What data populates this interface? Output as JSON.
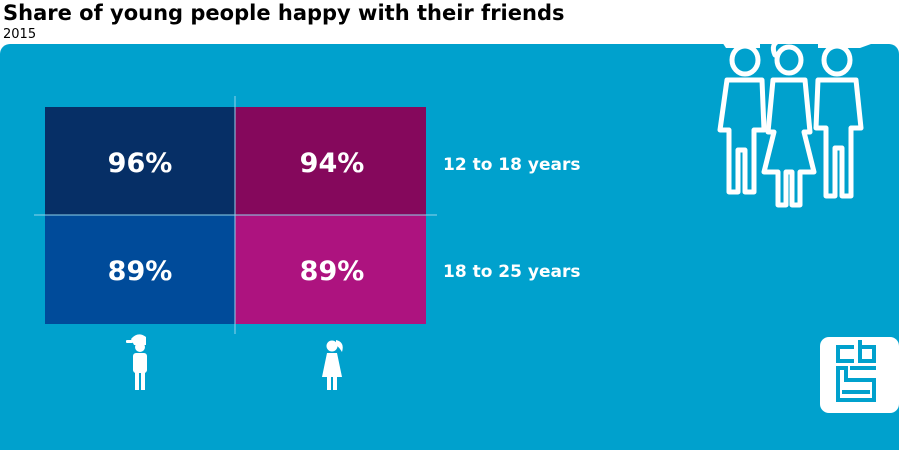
{
  "title": "Share of young people happy with their friends",
  "subtitle": "2015",
  "colors": {
    "background_panel": "#00a1cd",
    "boys_12_18": "#062f66",
    "girls_12_18": "#85085c",
    "boys_18_25": "#004b9a",
    "girls_18_25": "#ad137f",
    "icon": "#ffffff"
  },
  "icons": {
    "group": "group-of-young-people-icon",
    "boy": "boy-icon",
    "girl": "girl-icon",
    "logo": "cbs-logo-icon"
  },
  "chart_data": {
    "type": "table",
    "title": "Share of young people happy with their friends",
    "subtitle": "2015",
    "unit": "%",
    "rows": [
      "12 to 18 years",
      "18 to 25 years"
    ],
    "columns": [
      "boy-icon",
      "girl-icon"
    ],
    "values": [
      [
        96,
        94
      ],
      [
        89,
        89
      ]
    ],
    "labels": [
      [
        "96%",
        "94%"
      ],
      [
        "89%",
        "89%"
      ]
    ]
  }
}
